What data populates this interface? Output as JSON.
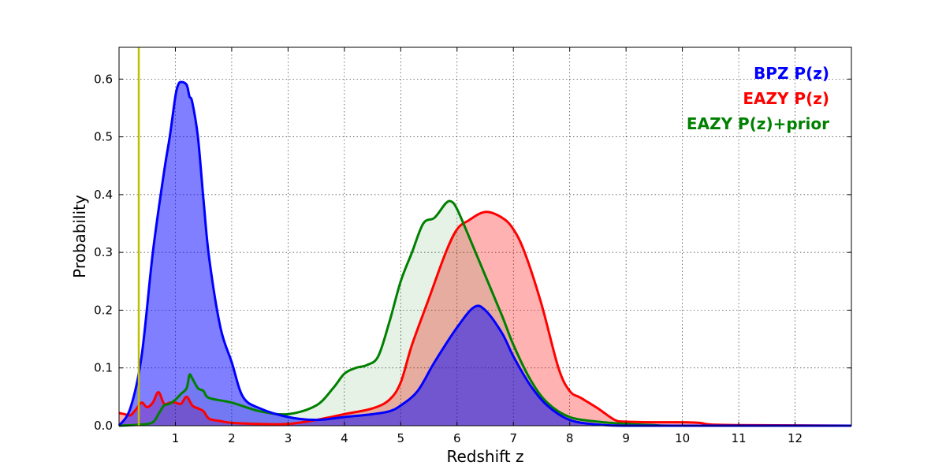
{
  "chart_data": {
    "type": "area",
    "title": "",
    "xlabel": "Redshift z",
    "ylabel": "Probability",
    "xlim": [
      0,
      13
    ],
    "ylim": [
      0,
      0.655
    ],
    "xticks": [
      1,
      2,
      3,
      4,
      5,
      6,
      7,
      8,
      9,
      10,
      11,
      12
    ],
    "yticks": [
      0.0,
      0.1,
      0.2,
      0.3,
      0.4,
      0.5,
      0.6
    ],
    "grid": true,
    "legend_position": "top-right",
    "vline": {
      "x": 0.35,
      "color": "#bfbf00"
    },
    "series": [
      {
        "name": "EAZY P(z)",
        "color": "#ff0000",
        "fill_opacity": 0.3,
        "x": [
          0,
          0.1,
          0.2,
          0.3,
          0.4,
          0.5,
          0.6,
          0.7,
          0.8,
          0.9,
          1.0,
          1.1,
          1.2,
          1.3,
          1.4,
          1.5,
          1.6,
          1.8,
          2.0,
          2.5,
          3.0,
          3.5,
          4.0,
          4.5,
          4.8,
          5.0,
          5.2,
          5.5,
          5.8,
          6.0,
          6.2,
          6.5,
          6.8,
          7.0,
          7.2,
          7.5,
          7.8,
          8.0,
          8.2,
          8.5,
          8.8,
          9.0,
          9.5,
          10.0,
          10.3,
          10.5,
          11.0,
          12.0,
          13.0
        ],
        "y": [
          0.022,
          0.02,
          0.018,
          0.028,
          0.04,
          0.032,
          0.04,
          0.058,
          0.038,
          0.04,
          0.04,
          0.038,
          0.05,
          0.035,
          0.03,
          0.025,
          0.012,
          0.008,
          0.005,
          0.003,
          0.003,
          0.01,
          0.02,
          0.03,
          0.045,
          0.075,
          0.14,
          0.22,
          0.3,
          0.34,
          0.355,
          0.37,
          0.36,
          0.34,
          0.3,
          0.21,
          0.1,
          0.06,
          0.048,
          0.03,
          0.01,
          0.007,
          0.006,
          0.006,
          0.005,
          0.002,
          0.001,
          0.0005,
          0.0
        ]
      },
      {
        "name": "EAZY P(z)+prior",
        "color": "#008000",
        "fill_opacity": 0.1,
        "x": [
          0,
          0.4,
          0.6,
          0.7,
          0.8,
          0.9,
          1.0,
          1.1,
          1.2,
          1.25,
          1.3,
          1.4,
          1.5,
          1.6,
          2.0,
          2.5,
          3.0,
          3.5,
          3.8,
          4.0,
          4.2,
          4.4,
          4.6,
          4.8,
          5.0,
          5.2,
          5.4,
          5.6,
          5.8,
          5.9,
          6.0,
          6.2,
          6.5,
          6.8,
          7.0,
          7.3,
          7.6,
          8.0,
          8.5,
          9.0,
          9.5,
          10.0,
          13.0
        ],
        "y": [
          0.0,
          0.002,
          0.006,
          0.02,
          0.035,
          0.038,
          0.045,
          0.055,
          0.065,
          0.088,
          0.082,
          0.065,
          0.06,
          0.048,
          0.04,
          0.025,
          0.02,
          0.035,
          0.065,
          0.09,
          0.1,
          0.105,
          0.12,
          0.18,
          0.25,
          0.3,
          0.35,
          0.36,
          0.385,
          0.388,
          0.375,
          0.33,
          0.26,
          0.19,
          0.14,
          0.08,
          0.04,
          0.015,
          0.007,
          0.003,
          0.001,
          0.0,
          0.0
        ]
      },
      {
        "name": "BPZ P(z)",
        "color": "#0000ff",
        "fill_opacity": 0.5,
        "x": [
          0,
          0.2,
          0.4,
          0.6,
          0.8,
          0.9,
          1.0,
          1.05,
          1.1,
          1.2,
          1.25,
          1.3,
          1.4,
          1.5,
          1.6,
          1.8,
          2.0,
          2.2,
          2.5,
          3.0,
          3.5,
          4.0,
          4.5,
          4.8,
          5.0,
          5.3,
          5.6,
          6.0,
          6.3,
          6.5,
          6.8,
          7.0,
          7.3,
          7.6,
          8.0,
          8.5,
          9.0,
          10.0,
          13.0
        ],
        "y": [
          0.0,
          0.03,
          0.12,
          0.3,
          0.44,
          0.5,
          0.57,
          0.59,
          0.595,
          0.59,
          0.57,
          0.56,
          0.5,
          0.39,
          0.29,
          0.17,
          0.11,
          0.05,
          0.03,
          0.015,
          0.01,
          0.015,
          0.02,
          0.025,
          0.035,
          0.06,
          0.11,
          0.17,
          0.205,
          0.2,
          0.16,
          0.12,
          0.07,
          0.035,
          0.01,
          0.002,
          0.0,
          0.0,
          0.0
        ]
      }
    ],
    "legend": [
      {
        "label": "BPZ P(z)",
        "color": "#0000ff"
      },
      {
        "label": "EAZY P(z)",
        "color": "#ff0000"
      },
      {
        "label": "EAZY P(z)+prior",
        "color": "#008000"
      }
    ]
  }
}
